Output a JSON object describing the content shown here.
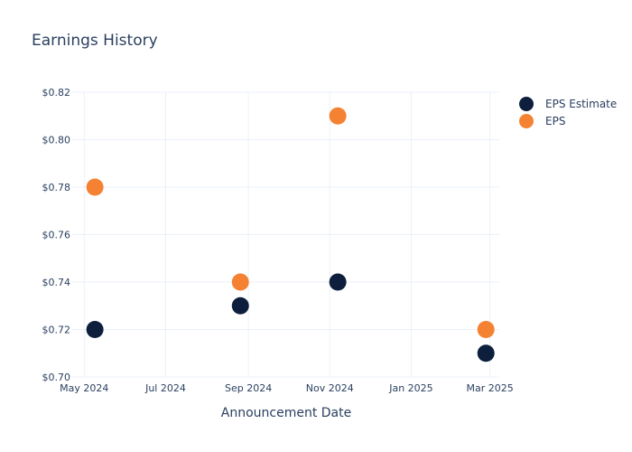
{
  "chart_data": {
    "type": "scatter",
    "title": "Earnings History",
    "xlabel": "Announcement Date",
    "ylabel": "",
    "x_ticks": [
      {
        "date": "2024-05-01",
        "label": "May 2024"
      },
      {
        "date": "2024-07-01",
        "label": "Jul 2024"
      },
      {
        "date": "2024-09-01",
        "label": "Sep 2024"
      },
      {
        "date": "2024-11-01",
        "label": "Nov 2024"
      },
      {
        "date": "2025-01-01",
        "label": "Jan 2025"
      },
      {
        "date": "2025-03-01",
        "label": "Mar 2025"
      }
    ],
    "xlim": [
      "2024-04-22",
      "2025-03-08"
    ],
    "ylim": [
      0.7,
      0.82
    ],
    "y_ticks": [
      {
        "value": 0.7,
        "label": "$0.70"
      },
      {
        "value": 0.72,
        "label": "$0.72"
      },
      {
        "value": 0.74,
        "label": "$0.74"
      },
      {
        "value": 0.76,
        "label": "$0.76"
      },
      {
        "value": 0.78,
        "label": "$0.78"
      },
      {
        "value": 0.8,
        "label": "$0.80"
      },
      {
        "value": 0.82,
        "label": "$0.82"
      }
    ],
    "grid": true,
    "legend_position": "top-right",
    "series": [
      {
        "name": "EPS Estimate",
        "color": "#0d1f3c",
        "points": [
          {
            "x": "2024-05-09",
            "y": 0.72
          },
          {
            "x": "2024-08-26",
            "y": 0.73
          },
          {
            "x": "2024-11-07",
            "y": 0.74
          },
          {
            "x": "2025-02-26",
            "y": 0.71
          }
        ]
      },
      {
        "name": "EPS",
        "color": "#f58232",
        "points": [
          {
            "x": "2024-05-09",
            "y": 0.78
          },
          {
            "x": "2024-08-26",
            "y": 0.74
          },
          {
            "x": "2024-11-07",
            "y": 0.81
          },
          {
            "x": "2025-02-26",
            "y": 0.72
          }
        ]
      }
    ]
  }
}
